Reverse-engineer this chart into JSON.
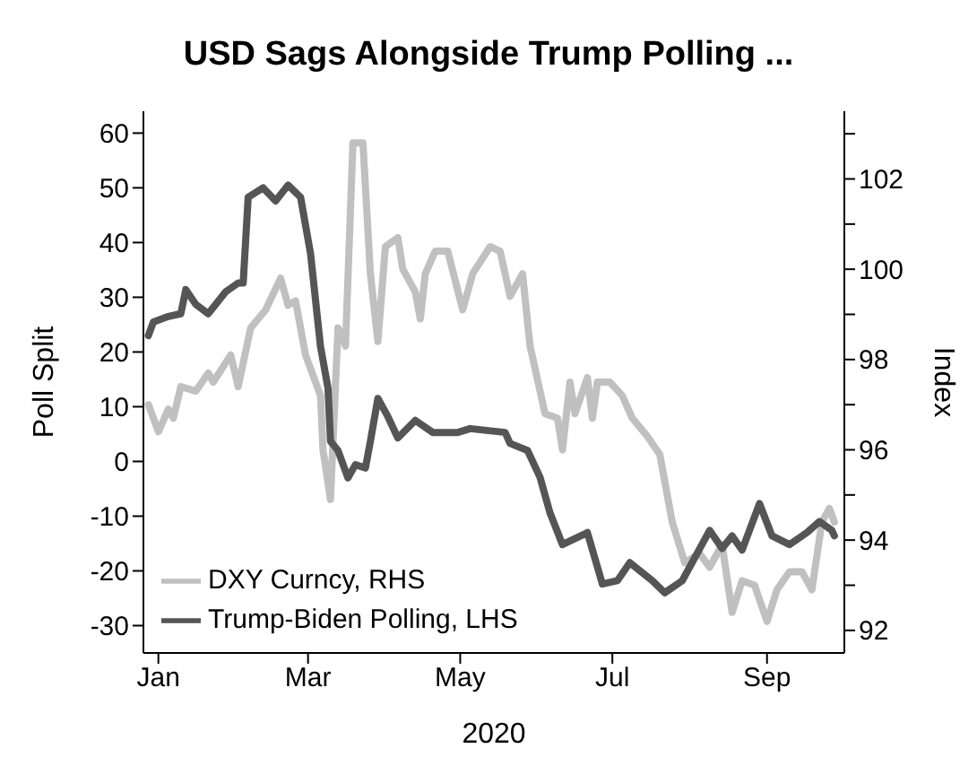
{
  "chart_data": {
    "type": "line",
    "title": "USD Sags Alongside Trump Polling ...",
    "xlabel": "2020",
    "ylabel": "Poll Split",
    "y2label": "Index",
    "xlim": [
      "2019-12-26",
      "2020-10-02"
    ],
    "xticks": [
      {
        "value": "2020-01-01",
        "label": "Jan"
      },
      {
        "value": "2020-03-01",
        "label": "Mar"
      },
      {
        "value": "2020-05-01",
        "label": "May"
      },
      {
        "value": "2020-07-01",
        "label": "Jul"
      },
      {
        "value": "2020-09-01",
        "label": "Sep"
      }
    ],
    "ylim": [
      -35,
      64
    ],
    "yticks": [
      -30,
      -20,
      -10,
      0,
      10,
      20,
      30,
      40,
      50,
      60
    ],
    "y2lim": [
      91.5,
      103.5
    ],
    "y2ticks": [
      92,
      {
        "value": 93,
        "label": null
      },
      94,
      {
        "value": 95,
        "label": null
      },
      96,
      {
        "value": 97,
        "label": null
      },
      98,
      {
        "value": 99,
        "label": null
      },
      100,
      {
        "value": 101,
        "label": null
      },
      102,
      {
        "value": 103,
        "label": null
      }
    ],
    "legend": "bottom left",
    "grid": false,
    "marker": "none",
    "line_style": "solid",
    "series": [
      {
        "name": "DXY Curncy, RHS",
        "color": "#c0c0c0",
        "axis": "y2",
        "x": [
          "2019-12-28",
          "2020-01-01",
          "2020-01-05",
          "2020-01-07",
          "2020-01-10",
          "2020-01-16",
          "2020-01-21",
          "2020-01-23",
          "2020-01-30",
          "2020-02-02",
          "2020-02-07",
          "2020-02-13",
          "2020-02-19",
          "2020-02-22",
          "2020-02-25",
          "2020-02-29",
          "2020-03-06",
          "2020-03-07",
          "2020-03-10",
          "2020-03-13",
          "2020-03-16",
          "2020-03-19",
          "2020-03-23",
          "2020-03-26",
          "2020-03-29",
          "2020-04-01",
          "2020-04-06",
          "2020-04-08",
          "2020-04-13",
          "2020-04-15",
          "2020-04-17",
          "2020-04-21",
          "2020-04-26",
          "2020-05-02",
          "2020-05-06",
          "2020-05-13",
          "2020-05-17",
          "2020-05-21",
          "2020-05-26",
          "2020-05-29",
          "2020-06-04",
          "2020-06-09",
          "2020-06-11",
          "2020-06-14",
          "2020-06-16",
          "2020-06-21",
          "2020-06-23",
          "2020-06-25",
          "2020-06-30",
          "2020-07-05",
          "2020-07-09",
          "2020-07-15",
          "2020-07-20",
          "2020-07-25",
          "2020-07-30",
          "2020-08-05",
          "2020-08-09",
          "2020-08-14",
          "2020-08-18",
          "2020-08-22",
          "2020-08-27",
          "2020-09-01",
          "2020-09-05",
          "2020-09-10",
          "2020-09-15",
          "2020-09-19",
          "2020-09-23",
          "2020-09-26",
          "2020-09-28"
        ],
        "values": [
          97.0,
          96.4,
          96.9,
          96.7,
          97.4,
          97.3,
          97.7,
          97.5,
          98.1,
          97.4,
          98.7,
          99.1,
          99.8,
          99.2,
          99.3,
          98.1,
          97.2,
          96.0,
          94.9,
          98.7,
          98.3,
          102.8,
          102.8,
          99.9,
          98.4,
          100.5,
          100.7,
          100.0,
          99.5,
          98.9,
          99.9,
          100.4,
          100.4,
          99.1,
          99.9,
          100.5,
          100.4,
          99.4,
          99.9,
          98.3,
          96.8,
          96.7,
          96.0,
          97.5,
          96.8,
          97.6,
          96.7,
          97.5,
          97.5,
          97.2,
          96.7,
          96.3,
          95.9,
          94.4,
          93.5,
          93.7,
          93.4,
          93.9,
          92.4,
          93.1,
          93.0,
          92.2,
          92.9,
          93.3,
          93.3,
          92.9,
          94.4,
          94.7,
          94.4
        ]
      },
      {
        "name": "Trump-Biden Polling, LHS",
        "color": "#555555",
        "x": [
          "2019-12-28",
          "2019-12-30",
          "2020-01-05",
          "2020-01-10",
          "2020-01-12",
          "2020-01-16",
          "2020-01-21",
          "2020-01-28",
          "2020-02-02",
          "2020-02-04",
          "2020-02-06",
          "2020-02-12",
          "2020-02-17",
          "2020-02-22",
          "2020-02-27",
          "2020-03-02",
          "2020-03-06",
          "2020-03-09",
          "2020-03-10",
          "2020-03-13",
          "2020-03-17",
          "2020-03-20",
          "2020-03-24",
          "2020-03-26",
          "2020-03-29",
          "2020-04-02",
          "2020-04-06",
          "2020-04-13",
          "2020-04-20",
          "2020-04-30",
          "2020-05-05",
          "2020-05-19",
          "2020-05-21",
          "2020-05-28",
          "2020-06-02",
          "2020-06-06",
          "2020-06-11",
          "2020-06-21",
          "2020-06-27",
          "2020-07-03",
          "2020-07-08",
          "2020-07-17",
          "2020-07-22",
          "2020-07-29",
          "2020-08-09",
          "2020-08-14",
          "2020-08-18",
          "2020-08-22",
          "2020-08-29",
          "2020-09-03",
          "2020-09-10",
          "2020-09-17",
          "2020-09-22",
          "2020-09-27",
          "2020-09-28"
        ],
        "values": [
          23,
          25.5,
          26.5,
          27,
          31.4,
          28.7,
          27,
          31,
          32.6,
          32.6,
          48.3,
          50,
          47.6,
          50.5,
          48.3,
          38,
          21,
          13.4,
          3.7,
          2,
          -3,
          -0.6,
          -1.2,
          3.7,
          11.5,
          8.2,
          4.3,
          7.5,
          5.3,
          5.3,
          6,
          5.3,
          3.3,
          2,
          -2.9,
          -9.4,
          -15.2,
          -13,
          -22.4,
          -21.8,
          -18.5,
          -21.8,
          -24,
          -21.8,
          -12.6,
          -15.9,
          -13.6,
          -16.2,
          -7.7,
          -13.6,
          -15.2,
          -13,
          -11,
          -12.6,
          -13.6
        ]
      }
    ]
  }
}
